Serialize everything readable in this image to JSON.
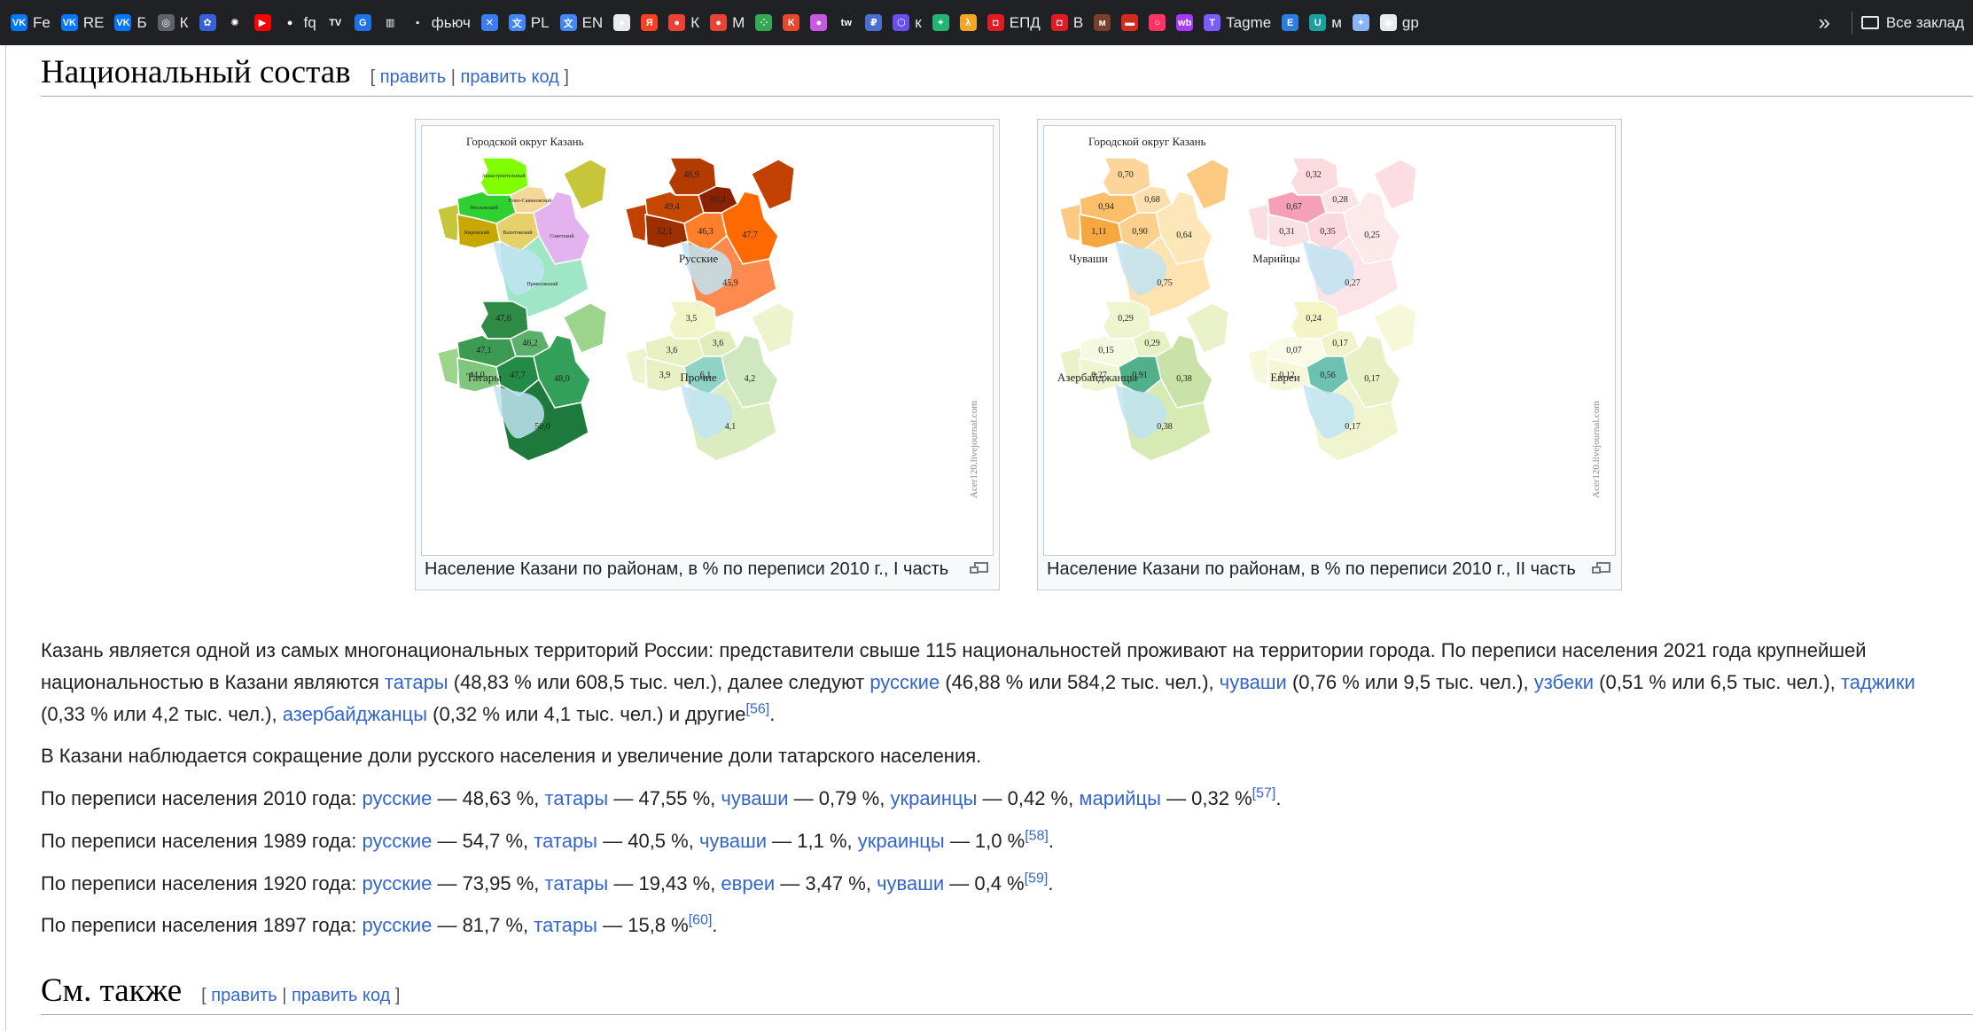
{
  "bookmarks": [
    {
      "icon": "vk-icon",
      "color": "#0077ff",
      "glyph": "VK",
      "label": "Fe"
    },
    {
      "icon": "vk-icon",
      "color": "#0077ff",
      "glyph": "VK",
      "label": "RE"
    },
    {
      "icon": "vk-icon",
      "color": "#0077ff",
      "glyph": "VK",
      "label": "Б"
    },
    {
      "icon": "globe-icon",
      "color": "#5f6368",
      "glyph": "◎",
      "label": "К"
    },
    {
      "icon": "spiral-icon",
      "color": "#3a5fd9",
      "glyph": "✿",
      "label": ""
    },
    {
      "icon": "openai-icon",
      "color": "#202124",
      "glyph": "✺",
      "label": ""
    },
    {
      "icon": "youtube-icon",
      "color": "#ff0000",
      "glyph": "▶",
      "label": ""
    },
    {
      "icon": "github-icon",
      "color": "#202124",
      "glyph": "●",
      "label": "fq"
    },
    {
      "icon": "tv-icon",
      "color": "#202124",
      "glyph": "TV",
      "label": ""
    },
    {
      "icon": "g-icon",
      "color": "#1a73e8",
      "glyph": "G",
      "label": ""
    },
    {
      "icon": "bars-icon",
      "color": "#202124",
      "glyph": "▥",
      "label": ""
    },
    {
      "icon": "brand-icon",
      "color": "#202124",
      "glyph": "▪",
      "label": "фьюч"
    },
    {
      "icon": "x-icon",
      "color": "#3d7cf5",
      "glyph": "✕",
      "label": ""
    },
    {
      "icon": "translate-icon",
      "color": "#4285f4",
      "glyph": "文",
      "label": "PL"
    },
    {
      "icon": "translate-icon",
      "color": "#4285f4",
      "glyph": "文",
      "label": "EN"
    },
    {
      "icon": "circle-flag-icon",
      "color": "#e8eaed",
      "glyph": "●",
      "label": ""
    },
    {
      "icon": "yandex-icon",
      "color": "#fc3f1d",
      "glyph": "Я",
      "label": ""
    },
    {
      "icon": "pin-icon",
      "color": "#ea4335",
      "glyph": "●",
      "label": "К"
    },
    {
      "icon": "pin-icon",
      "color": "#ea4335",
      "glyph": "●",
      "label": "М"
    },
    {
      "icon": "dots-icon",
      "color": "#34a853",
      "glyph": "⁘",
      "label": ""
    },
    {
      "icon": "k-icon",
      "color": "#e8472b",
      "glyph": "K",
      "label": ""
    },
    {
      "icon": "color-wheel-icon",
      "color": "#c858e0",
      "glyph": "●",
      "label": ""
    },
    {
      "icon": "tw-icon",
      "color": "#202124",
      "glyph": "tw",
      "label": ""
    },
    {
      "icon": "ruble-icon",
      "color": "#4a6fd0",
      "glyph": "₽",
      "label": ""
    },
    {
      "icon": "cube-icon",
      "color": "#6a4ff0",
      "glyph": "⬡",
      "label": "к"
    },
    {
      "icon": "green-icon",
      "color": "#22b573",
      "glyph": "✦",
      "label": ""
    },
    {
      "icon": "lambda-icon",
      "color": "#f5a623",
      "glyph": "λ",
      "label": ""
    },
    {
      "icon": "shield-icon",
      "color": "#e01b24",
      "glyph": "◘",
      "label": "ЕПД"
    },
    {
      "icon": "shield-icon",
      "color": "#e01b24",
      "glyph": "◘",
      "label": "В"
    },
    {
      "icon": "bank-icon",
      "color": "#7a3e2a",
      "glyph": "м",
      "label": ""
    },
    {
      "icon": "flag-icon",
      "color": "#d52b1e",
      "glyph": "▬",
      "label": ""
    },
    {
      "icon": "ring-icon",
      "color": "#ff3366",
      "glyph": "○",
      "label": ""
    },
    {
      "icon": "wb-icon",
      "color": "#a73afd",
      "glyph": "wb",
      "label": ""
    },
    {
      "icon": "t-icon",
      "color": "#7b5cff",
      "glyph": "T",
      "label": "Tagme"
    },
    {
      "icon": "e-icon",
      "color": "#2a7de1",
      "glyph": "E",
      "label": ""
    },
    {
      "icon": "u-icon",
      "color": "#19a0a0",
      "glyph": "U",
      "label": "м"
    },
    {
      "icon": "star-icon",
      "color": "#8ab4f8",
      "glyph": "✦",
      "label": ""
    },
    {
      "icon": "search-page-icon",
      "color": "#e8eaed",
      "glyph": "◉",
      "label": "gp"
    }
  ],
  "bookmarks_more": "»",
  "all_bookmarks": "Все заклад",
  "section1": {
    "title": "Национальный состав",
    "edit_open": "[ ",
    "edit": "править",
    "edit_sep": " | ",
    "edit_code": "править код",
    "edit_close": " ]"
  },
  "figure1": {
    "caption": "Население Казани по районам, в % по переписи 2010 г., I часть",
    "heading": "Городской округ Казань",
    "credit": "Acer120.livejournal.com",
    "districts": [
      "Авиастроительный",
      "Московский",
      "Ново-Савиновский",
      "Кировский",
      "Вахитовский",
      "Советский",
      "Приволжский"
    ],
    "panels": [
      {
        "label": "Русские",
        "values": [
          "48,9",
          "49,4",
          "50,3",
          "52,1",
          "46,3",
          "47,7",
          "45,9"
        ]
      },
      {
        "label": "Татары",
        "values": [
          "47,6",
          "47,1",
          "46,2",
          "44,0",
          "47,7",
          "48,0",
          "50,0"
        ]
      },
      {
        "label": "Прочие",
        "values": [
          "3,5",
          "3,6",
          "3,6",
          "3,9",
          "6,1",
          "4,2",
          "4,1"
        ]
      }
    ]
  },
  "figure2": {
    "caption": "Население Казани по районам, в % по переписи 2010 г., II часть",
    "heading": "Городской округ Казань",
    "credit": "Acer120.livejournal.com",
    "panels": [
      {
        "label": "Чуваши",
        "values": [
          "0,70",
          "0,94",
          "0,68",
          "1,11",
          "0,90",
          "0,64",
          "0,75"
        ]
      },
      {
        "label": "Марийцы",
        "values": [
          "0,32",
          "0,67",
          "0,28",
          "0,31",
          "0,35",
          "0,25",
          "0,27"
        ]
      },
      {
        "label": "Азербайджанцы",
        "values": [
          "0,29",
          "0,15",
          "0,29",
          "0,27",
          "0,91",
          "0,38",
          "0,38"
        ]
      },
      {
        "label": "Евреи",
        "values": [
          "0,24",
          "0,07",
          "0,17",
          "0,12",
          "0,56",
          "0,17",
          "0,17"
        ]
      }
    ]
  },
  "p1": {
    "t1": "Казань является одной из самых многонациональных территорий России: представители свыше 115 национальностей проживают на территории города. По переписи населения 2021 года крупнейшей национальностью в Казани являются ",
    "l1": "татары",
    "t2": " (48,83 % или 608,5 тыс. чел.), далее следуют ",
    "l2": "русские",
    "t3": " (46,88 % или 584,2 тыс. чел.), ",
    "l3": "чуваши",
    "t4": " (0,76 % или 9,5 тыс. чел.), ",
    "l4": "узбеки",
    "t5": " (0,51 % или 6,5 тыс. чел.), ",
    "l5": "таджики",
    "t6": " (0,33 % или 4,2 тыс. чел.), ",
    "l6": "азербайджанцы",
    "t7": " (0,32 % или 4,1 тыс. чел.) и другие",
    "ref": "[56]",
    "end": "."
  },
  "p2": "В Казани наблюдается сокращение доли русского населения и увеличение доли татарского населения.",
  "p3": {
    "t1": "По переписи населения 2010 года: ",
    "l1": "русские",
    "t2": " — 48,63 %, ",
    "l2": "татары",
    "t3": " — 47,55 %, ",
    "l3": "чуваши",
    "t4": " — 0,79 %, ",
    "l4": "украинцы",
    "t5": " — 0,42 %, ",
    "l5": "марийцы",
    "t6": " — 0,32 %",
    "ref": "[57]",
    "end": "."
  },
  "p4": {
    "t1": "По переписи населения 1989 года: ",
    "l1": "русские",
    "t2": " — 54,7 %, ",
    "l2": "татары",
    "t3": " — 40,5 %, ",
    "l3": "чуваши",
    "t4": " — 1,1 %, ",
    "l4": "украинцы",
    "t5": " — 1,0 %",
    "ref": "[58]",
    "end": "."
  },
  "p5": {
    "t1": "По переписи населения 1920 года: ",
    "l1": "русские",
    "t2": " — 73,95 %, ",
    "l2": "татары",
    "t3": " — 19,43 %, ",
    "l3": "евреи",
    "t4": " — 3,47 %, ",
    "l4": "чуваши",
    "t5": " — 0,4 %",
    "ref": "[59]",
    "end": "."
  },
  "p6": {
    "t1": "По переписи населения 1897 года: ",
    "l1": "русские",
    "t2": " — 81,7 %, ",
    "l2": "татары",
    "t3": " — 15,8 %",
    "ref": "[60]",
    "end": "."
  },
  "section2": {
    "title": "См. также",
    "edit_open": "[ ",
    "edit": "править",
    "edit_sep": " | ",
    "edit_code": "править код",
    "edit_close": " ]"
  }
}
